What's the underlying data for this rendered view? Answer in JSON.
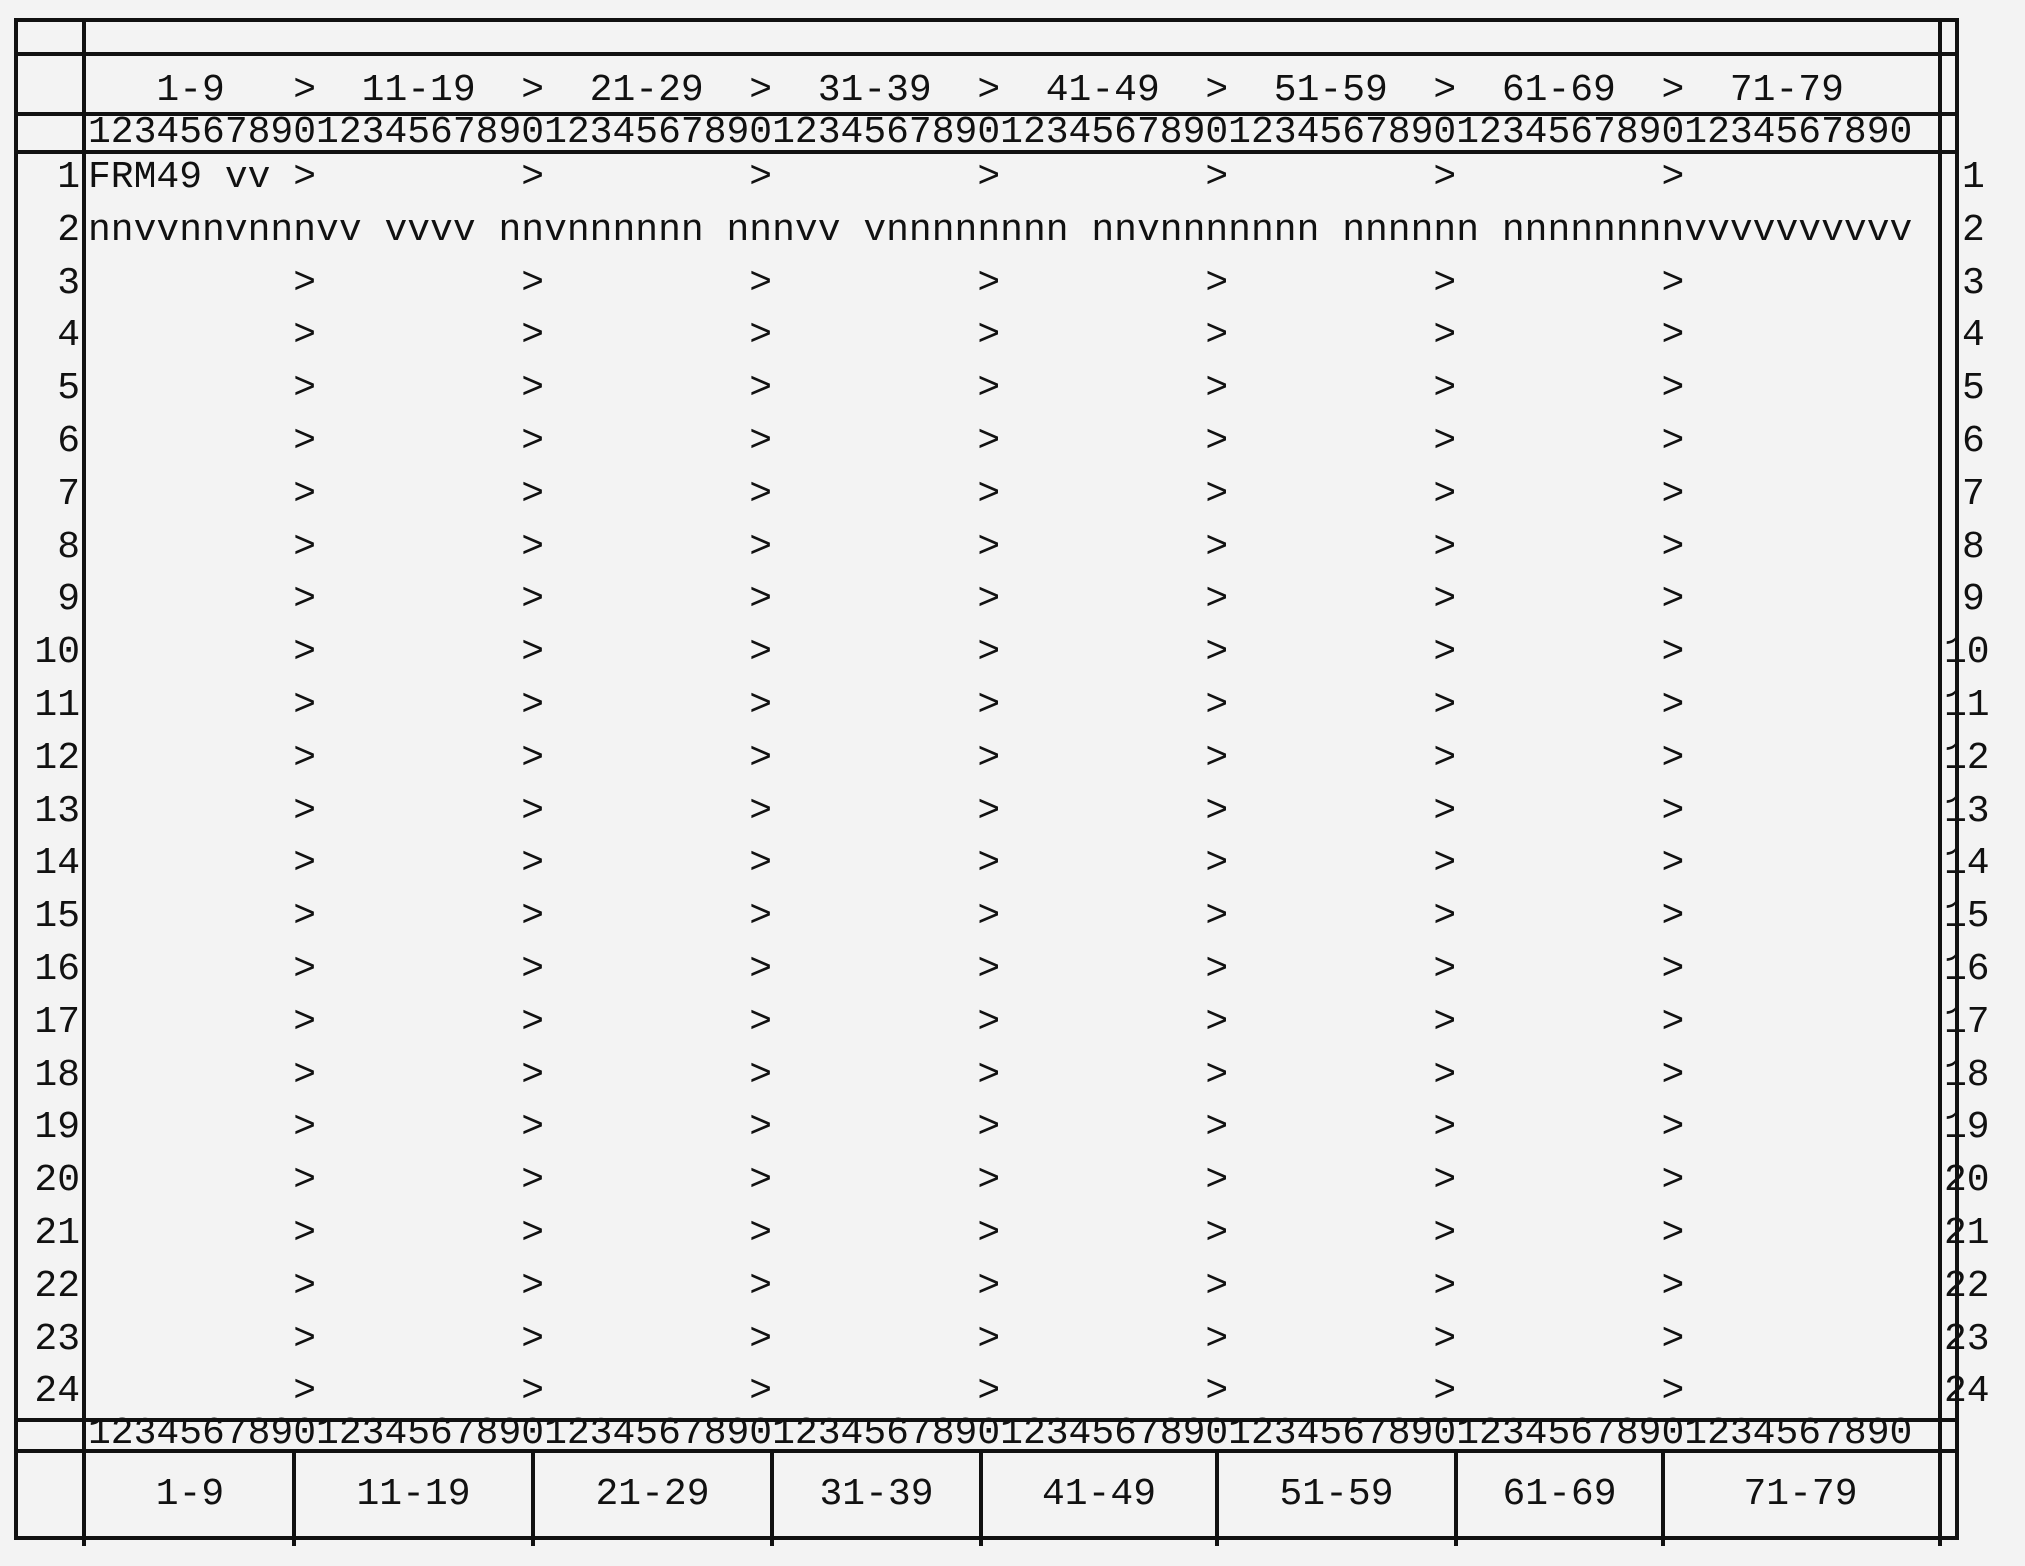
{
  "header": {
    "title_row": "",
    "column_groups": "   1-9   >  11-19  >  21-29  >  31-39  >  41-49  >  51-59  >  61-69  >  71-79",
    "ruler_top": "12345678901234567890123456789012345678901234567890123456789012345678901234567890"
  },
  "grid": {
    "row_numbers": [
      "1",
      "2",
      "3",
      "4",
      "5",
      "6",
      "7",
      "8",
      "9",
      "10",
      "11",
      "12",
      "13",
      "14",
      "15",
      "16",
      "17",
      "18",
      "19",
      "20",
      "21",
      "22",
      "23",
      "24"
    ],
    "rows": [
      "FRM49 vv >         >         >         >         >         >         >",
      "nnvvnnvnnnvv vvvv nnvnnnnnn nnnvv vnnnnnnnn nnvnnnnnnn nnnnnn nnnnnnnnvvvvvvvvvv",
      "         >         >         >         >         >         >         >",
      "         >         >         >         >         >         >         >",
      "         >         >         >         >         >         >         >",
      "         >         >         >         >         >         >         >",
      "         >         >         >         >         >         >         >",
      "         >         >         >         >         >         >         >",
      "         >         >         >         >         >         >         >",
      "         >         >         >         >         >         >         >",
      "         >         >         >         >         >         >         >",
      "         >         >         >         >         >         >         >",
      "         >         >         >         >         >         >         >",
      "         >         >         >         >         >         >         >",
      "         >         >         >         >         >         >         >",
      "         >         >         >         >         >         >         >",
      "         >         >         >         >         >         >         >",
      "         >         >         >         >         >         >         >",
      "         >         >         >         >         >         >         >",
      "         >         >         >         >         >         >         >",
      "         >         >         >         >         >         >         >",
      "         >         >         >         >         >         >         >",
      "         >         >         >         >         >         >         >",
      "         >         >         >         >         >         >         >"
    ]
  },
  "footer": {
    "ruler_bottom": "12345678901234567890123456789012345678901234567890123456789012345678901234567890",
    "buttons": [
      "1-9",
      "11-19",
      "21-29",
      "31-39",
      "41-49",
      "51-59",
      "61-69",
      "71-79"
    ]
  }
}
